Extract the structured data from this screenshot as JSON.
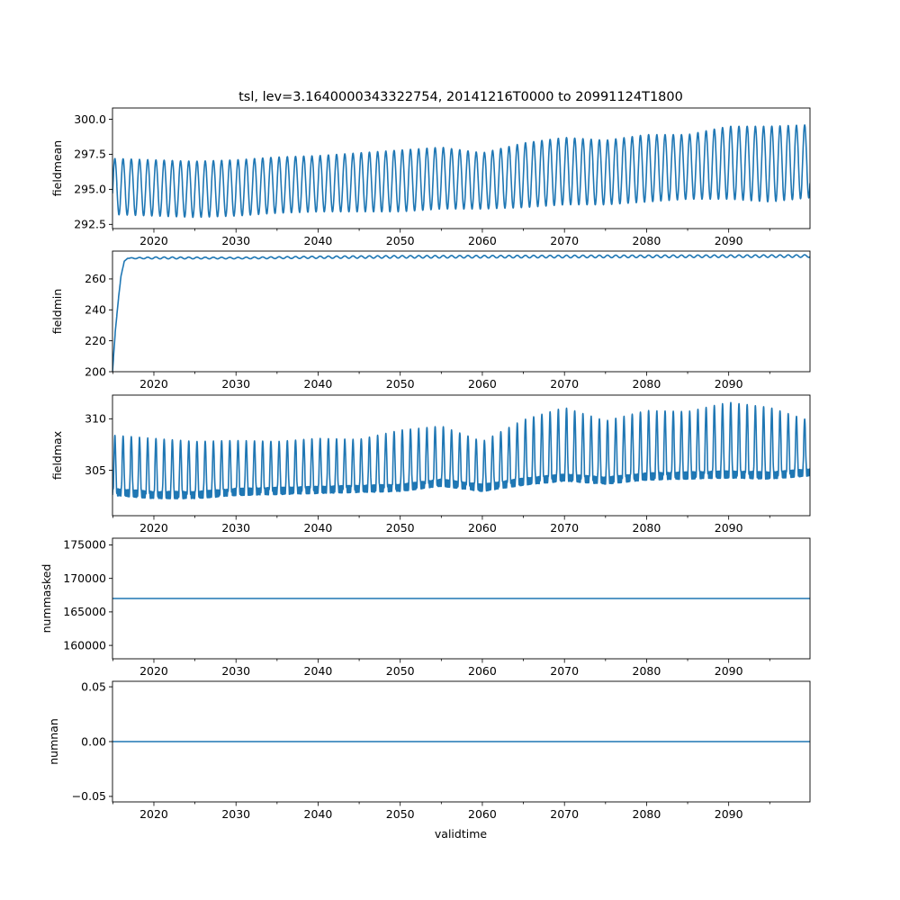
{
  "title": "tsl, lev=3.1640000343322754, 20141216T0000 to 20991124T1800",
  "xlabel": "validtime",
  "line_color": "#1f77b4",
  "chart_data": [
    {
      "type": "line",
      "name": "fieldmean",
      "ylabel": "fieldmean",
      "xlim": [
        2014.96,
        2099.9
      ],
      "ylim": [
        292.2,
        300.8
      ],
      "yticks": [
        292.5,
        295.0,
        297.5,
        300.0
      ],
      "ytick_labels": [
        "292.5",
        "295.0",
        "297.5",
        "300.0"
      ],
      "xticks": [
        2020,
        2030,
        2040,
        2050,
        2060,
        2070,
        2080,
        2090
      ],
      "xtick_labels": [
        "2020",
        "2030",
        "2040",
        "2050",
        "2060",
        "2070",
        "2080",
        "2090"
      ],
      "x": [
        2015,
        2020,
        2025,
        2030,
        2035,
        2040,
        2045,
        2050,
        2055,
        2060,
        2065,
        2070,
        2075,
        2080,
        2085,
        2090,
        2095,
        2099.9
      ],
      "y": [
        295.2,
        295.1,
        295.0,
        295.1,
        295.3,
        295.4,
        295.5,
        295.6,
        295.8,
        295.6,
        296.0,
        296.3,
        296.2,
        296.5,
        296.6,
        296.9,
        296.8,
        297.0
      ],
      "amplitude": [
        2.0,
        2.0,
        2.0,
        2.0,
        2.0,
        2.0,
        2.1,
        2.2,
        2.2,
        2.0,
        2.3,
        2.4,
        2.3,
        2.4,
        2.3,
        2.6,
        2.7,
        2.6
      ],
      "cycle_years": 1.0
    },
    {
      "type": "line",
      "name": "fieldmin",
      "ylabel": "fieldmin",
      "xlim": [
        2014.96,
        2099.9
      ],
      "ylim": [
        200,
        278
      ],
      "yticks": [
        200,
        220,
        240,
        260
      ],
      "ytick_labels": [
        "200",
        "220",
        "240",
        "260"
      ],
      "xticks": [
        2020,
        2030,
        2040,
        2050,
        2060,
        2070,
        2080,
        2090
      ],
      "xtick_labels": [
        "2020",
        "2030",
        "2040",
        "2050",
        "2060",
        "2070",
        "2080",
        "2090"
      ],
      "x": [
        2014.96,
        2015.3,
        2015.7,
        2016.0,
        2016.4,
        2016.8,
        2017.2,
        2020,
        2030,
        2040,
        2050,
        2060,
        2070,
        2080,
        2090,
        2099.9
      ],
      "y": [
        200,
        226,
        248,
        262,
        271.5,
        273.3,
        273.4,
        273.6,
        273.5,
        274.0,
        274.3,
        274.4,
        274.5,
        274.6,
        274.7,
        274.8
      ],
      "amplitude": [
        0,
        0,
        0,
        0,
        0,
        0,
        0.3,
        0.6,
        0.5,
        0.7,
        0.8,
        0.8,
        0.8,
        0.8,
        0.8,
        0.8
      ],
      "cycle_years": 1.0
    },
    {
      "type": "line",
      "name": "fieldmax",
      "ylabel": "fieldmax",
      "xlim": [
        2014.96,
        2099.9
      ],
      "ylim": [
        300.6,
        312.3
      ],
      "yticks": [
        305,
        310
      ],
      "ytick_labels": [
        "305",
        "310"
      ],
      "xticks": [
        2020,
        2030,
        2040,
        2050,
        2060,
        2070,
        2080,
        2090
      ],
      "xtick_labels": [
        "2020",
        "2030",
        "2040",
        "2050",
        "2060",
        "2070",
        "2080",
        "2090"
      ],
      "x": [
        2015,
        2020,
        2025,
        2030,
        2035,
        2040,
        2045,
        2050,
        2055,
        2060,
        2065,
        2070,
        2075,
        2080,
        2085,
        2090,
        2095,
        2099.9
      ],
      "y": [
        302.9,
        302.6,
        302.6,
        302.9,
        303.0,
        303.1,
        303.2,
        303.3,
        303.8,
        303.3,
        303.9,
        304.3,
        304.0,
        304.4,
        304.5,
        304.6,
        304.5,
        304.8
      ],
      "amplitude": [
        5.5,
        5.5,
        5.2,
        5.0,
        4.8,
        5.0,
        4.8,
        5.6,
        5.5,
        4.5,
        6.0,
        6.8,
        5.8,
        6.4,
        6.2,
        7.0,
        6.6,
        5.0
      ],
      "cycle_years": 1.0
    },
    {
      "type": "line",
      "name": "nummasked",
      "ylabel": "nummasked",
      "xlim": [
        2014.96,
        2099.9
      ],
      "ylim": [
        158000,
        176000
      ],
      "yticks": [
        160000,
        165000,
        170000,
        175000
      ],
      "ytick_labels": [
        "160000",
        "165000",
        "170000",
        "175000"
      ],
      "xticks": [
        2020,
        2030,
        2040,
        2050,
        2060,
        2070,
        2080,
        2090
      ],
      "xtick_labels": [
        "2020",
        "2030",
        "2040",
        "2050",
        "2060",
        "2070",
        "2080",
        "2090"
      ],
      "x": [
        2014.96,
        2099.9
      ],
      "y": [
        167000,
        167000
      ]
    },
    {
      "type": "line",
      "name": "numnan",
      "ylabel": "numnan",
      "xlim": [
        2014.96,
        2099.9
      ],
      "ylim": [
        -0.055,
        0.055
      ],
      "yticks": [
        -0.05,
        0.0,
        0.05
      ],
      "ytick_labels": [
        "−0.05",
        "0.00",
        "0.05"
      ],
      "xticks": [
        2020,
        2030,
        2040,
        2050,
        2060,
        2070,
        2080,
        2090
      ],
      "xtick_labels": [
        "2020",
        "2030",
        "2040",
        "2050",
        "2060",
        "2070",
        "2080",
        "2090"
      ],
      "x": [
        2014.96,
        2099.9
      ],
      "y": [
        0,
        0
      ]
    }
  ]
}
